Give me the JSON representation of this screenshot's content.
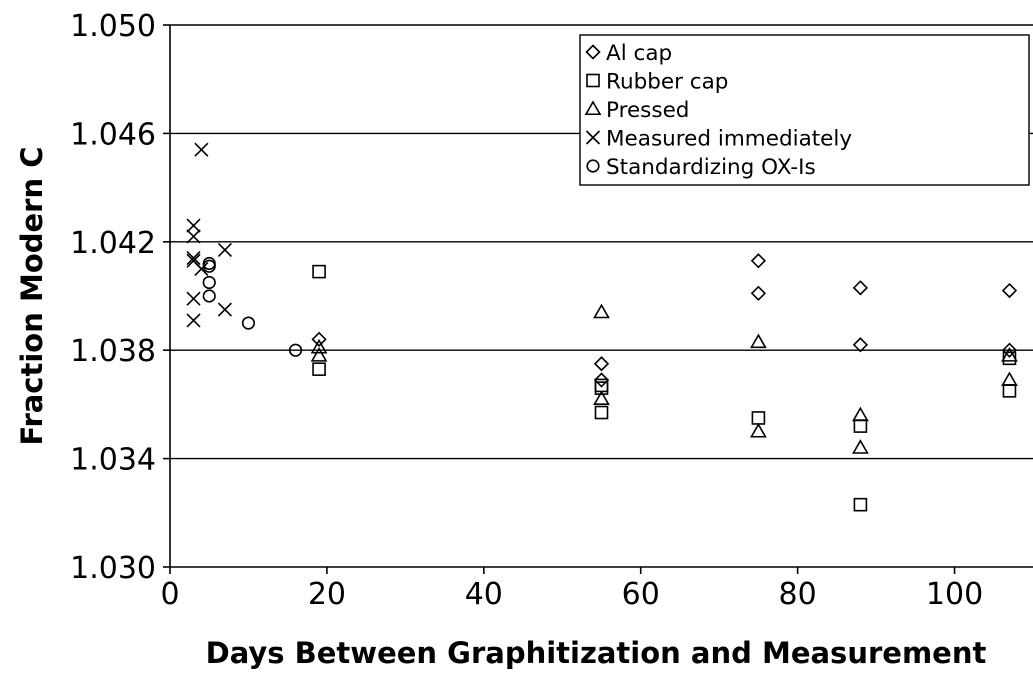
{
  "chart_data": {
    "type": "scatter",
    "title": "",
    "xlabel": "Days Between Graphitization and Measurement",
    "ylabel": "Fraction Modern C",
    "xlim": [
      0,
      110
    ],
    "ylim": [
      1.03,
      1.05
    ],
    "x_ticks": [
      0,
      20,
      40,
      60,
      80,
      100
    ],
    "y_ticks": [
      1.03,
      1.034,
      1.038,
      1.042,
      1.046,
      1.05
    ],
    "x_tick_labels": [
      "0",
      "20",
      "40",
      "60",
      "80",
      "100"
    ],
    "y_tick_labels": [
      "1.030",
      "1.034",
      "1.038",
      "1.042",
      "1.046",
      "1.050"
    ],
    "grid": "horizontal major",
    "legend_position": "top-right",
    "series": [
      {
        "name": "Al cap",
        "marker": "diamond",
        "x": [
          19,
          55,
          55,
          75,
          75,
          88,
          88,
          107,
          107
        ],
        "y": [
          1.0384,
          1.0375,
          1.0369,
          1.0413,
          1.0401,
          1.0403,
          1.0382,
          1.0402,
          1.038
        ]
      },
      {
        "name": "Rubber cap",
        "marker": "square",
        "x": [
          19,
          19,
          55,
          55,
          55,
          75,
          88,
          88,
          107,
          107
        ],
        "y": [
          1.0409,
          1.0373,
          1.0367,
          1.0366,
          1.0357,
          1.0355,
          1.0352,
          1.0323,
          1.0377,
          1.0365
        ]
      },
      {
        "name": "Pressed",
        "marker": "triangle",
        "x": [
          19,
          19,
          55,
          55,
          75,
          75,
          88,
          88,
          107,
          107
        ],
        "y": [
          1.0381,
          1.0378,
          1.0394,
          1.0362,
          1.0383,
          1.035,
          1.0356,
          1.0344,
          1.0378,
          1.0369
        ]
      },
      {
        "name": "Measured immediately",
        "marker": "x",
        "x": [
          4,
          3,
          3,
          3,
          3,
          4,
          7,
          3,
          7,
          3
        ],
        "y": [
          1.0454,
          1.0426,
          1.0422,
          1.0414,
          1.0413,
          1.041,
          1.0417,
          1.0399,
          1.0395,
          1.0391
        ]
      },
      {
        "name": "Standardizing OX-Is",
        "marker": "circle",
        "x": [
          5,
          5,
          5,
          5,
          10,
          16
        ],
        "y": [
          1.0412,
          1.0411,
          1.0405,
          1.04,
          1.039,
          1.038
        ]
      }
    ]
  }
}
